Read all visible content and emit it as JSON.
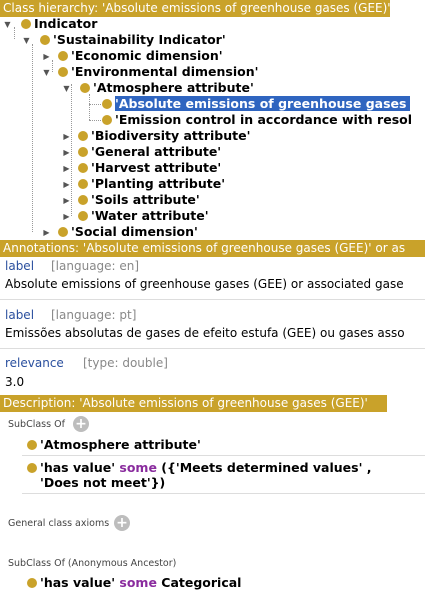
{
  "hierarchy": {
    "header": "Class hierarchy: 'Absolute emissions of greenhouse gases (GEE)'",
    "nodes": [
      {
        "label": "Indicator"
      },
      {
        "label": "'Sustainability Indicator'"
      },
      {
        "label": "'Economic dimension'"
      },
      {
        "label": "'Environmental dimension'"
      },
      {
        "label": "'Atmosphere attribute'"
      },
      {
        "label": "'Absolute emissions of greenhouse gases"
      },
      {
        "label": "'Emission control in accordance with resol"
      },
      {
        "label": "'Biodiversity attribute'"
      },
      {
        "label": "'General attribute'"
      },
      {
        "label": "'Harvest attribute'"
      },
      {
        "label": "'Planting attribute'"
      },
      {
        "label": "'Soils attribute'"
      },
      {
        "label": "'Water attribute'"
      },
      {
        "label": "'Social dimension'"
      }
    ]
  },
  "annotations": {
    "header": "Annotations: 'Absolute emissions of greenhouse gases (GEE)' or as",
    "items": [
      {
        "key": "label",
        "meta": "[language: en]",
        "value": "Absolute emissions of greenhouse gases (GEE) or associated gase"
      },
      {
        "key": "label",
        "meta": "[language: pt]",
        "value": "Emissões absolutas de gases de efeito estufa (GEE) ou gases asso"
      },
      {
        "key": "relevance",
        "meta": "[type: double]",
        "value": "3.0"
      }
    ]
  },
  "description": {
    "header": "Description: 'Absolute emissions of greenhouse gases (GEE)'",
    "subclass_title": "SubClass Of",
    "subclass_items": {
      "a1": "'Atmosphere attribute'",
      "a2_prop": "'has value'",
      "a2_kw": "some",
      "a2_rest": "({'Meets determined values' ,",
      "a2_line2": "'Does not meet'})"
    },
    "gca_title": "General class axioms",
    "anc_title": "SubClass Of (Anonymous Ancestor)",
    "anc_items": {
      "prop": "'has value'",
      "kw": "some",
      "rest": "Categorical"
    },
    "add_symbol": "+"
  },
  "colors": {
    "accent": "#c9a22a",
    "selection": "#2f65c0",
    "keyword": "#8a2c9e",
    "link": "#2a4f9e"
  }
}
